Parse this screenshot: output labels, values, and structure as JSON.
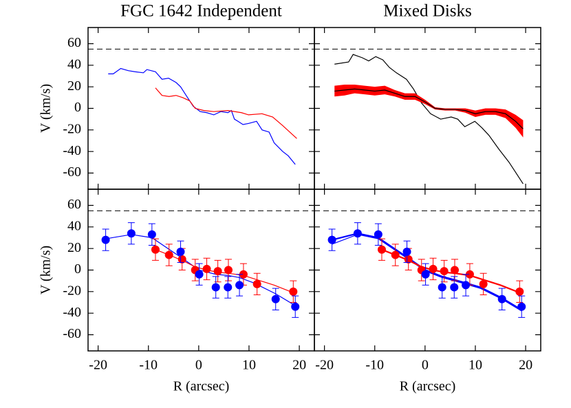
{
  "chart_data": [
    {
      "type": "line",
      "title": "FGC 1642 Independent",
      "ylabel": "V (km/s)",
      "xlim": [
        -22,
        23
      ],
      "ylim": [
        -75,
        75
      ],
      "xticks": [
        -20,
        -10,
        0,
        10,
        20
      ],
      "yticks": [
        -60,
        -40,
        -20,
        0,
        20,
        40,
        60
      ],
      "y_tick_labels": true,
      "x_tick_labels": false,
      "reference_line": 55,
      "series": [
        {
          "style": "line",
          "color": "#0000ff",
          "width": 1.2,
          "x": [
            -18,
            -17,
            -15.5,
            -14,
            -12.7,
            -11,
            -10.3,
            -8.6,
            -7.3,
            -6,
            -4.5,
            -3.6,
            -2.5,
            -1.1,
            0.3,
            1.6,
            3,
            4.4,
            5.8,
            6.5,
            7.1,
            7.8,
            8.8,
            9.9,
            11.5,
            12.6,
            14,
            15,
            16.7,
            17.8,
            19.2
          ],
          "values": [
            32,
            32,
            37,
            35,
            34,
            33,
            36,
            34,
            27,
            28,
            24,
            20,
            12,
            2,
            -3,
            -4,
            -6,
            -3,
            -4,
            -2,
            -10,
            -12,
            -15,
            -14,
            -12,
            -20,
            -22,
            -32,
            -40,
            -44,
            -52
          ]
        },
        {
          "style": "line",
          "color": "#ff0000",
          "width": 1.2,
          "x": [
            -8.6,
            -7.3,
            -5.9,
            -4.5,
            -3.2,
            -1.8,
            -0.7,
            1,
            3,
            5.8,
            8.5,
            9.9,
            12.6,
            14.7,
            16.7,
            18.1,
            19.5
          ],
          "values": [
            19,
            12,
            11,
            12,
            10,
            7,
            0,
            -2,
            -3,
            -2,
            -4,
            -6,
            -5,
            -8,
            -16,
            -22,
            -28
          ]
        }
      ]
    },
    {
      "type": "line",
      "title": "Mixed Disks",
      "xlim": [
        -22,
        23
      ],
      "ylim": [
        -75,
        75
      ],
      "xticks": [
        -20,
        -10,
        0,
        10,
        20
      ],
      "yticks": [
        -60,
        -40,
        -20,
        0,
        20,
        40,
        60
      ],
      "y_tick_labels": false,
      "x_tick_labels": false,
      "reference_line": 55,
      "series": [
        {
          "style": "line",
          "color": "#000000",
          "width": 1.2,
          "x": [
            -18,
            -15.2,
            -14.3,
            -12.5,
            -11.2,
            -9.8,
            -8.4,
            -7.1,
            -5.7,
            -3.7,
            -2.3,
            -0.7,
            1.1,
            3.1,
            5.2,
            6.5,
            7.9,
            9.9,
            11.3,
            12.7,
            14.7,
            16.7,
            19.5
          ],
          "values": [
            41,
            43,
            50,
            47,
            44,
            48,
            45,
            38,
            33,
            27,
            18,
            5,
            -5,
            -10,
            -8,
            -10,
            -17,
            -12,
            -18,
            -25,
            -38,
            -50,
            -70
          ]
        },
        {
          "style": "band",
          "color": "#ff0000",
          "line_color": "#000000",
          "width": 1.2,
          "x": [
            -18,
            -16,
            -14,
            -12,
            -10,
            -8,
            -6,
            -4,
            -2,
            0,
            2,
            4,
            6,
            8,
            10,
            12,
            14,
            16,
            18,
            19.5
          ],
          "values": [
            16,
            17,
            18,
            17,
            16,
            17,
            14,
            11,
            11,
            6,
            0,
            -1,
            -1,
            -2,
            -5,
            -3,
            -3,
            -5,
            -12,
            -19
          ],
          "errors": [
            5,
            5,
            4,
            4,
            4,
            4,
            3,
            3,
            3,
            2,
            1,
            1,
            1,
            2,
            3,
            3,
            3,
            4,
            6,
            8
          ]
        }
      ]
    },
    {
      "type": "line",
      "ylabel": "V (km/s)",
      "xlabel": "R (arcsec)",
      "xlim": [
        -22,
        23
      ],
      "ylim": [
        -75,
        75
      ],
      "xticks": [
        -20,
        -10,
        0,
        10,
        20
      ],
      "yticks": [
        -60,
        -40,
        -20,
        0,
        20,
        40,
        60
      ],
      "y_tick_labels": true,
      "x_tick_labels": true,
      "reference_line": 55,
      "series": [
        {
          "style": "line",
          "color": "#0000ff",
          "width": 1.2,
          "x": [
            -18.5,
            -13.4,
            -9.3,
            -3.6,
            0.1,
            3.4,
            5.8,
            8.1,
            11,
            15.3,
            19.2
          ],
          "values": [
            29,
            33,
            30,
            12,
            0,
            -4,
            -5,
            -7,
            -12,
            -22,
            -33
          ]
        },
        {
          "style": "line",
          "color": "#ff0000",
          "width": 1.2,
          "x": [
            -8.6,
            -5.9,
            -3.3,
            -0.7,
            1.6,
            3.8,
            5.9,
            8.9,
            11.6,
            15,
            18.8
          ],
          "values": [
            19,
            14,
            9,
            3,
            0,
            -2,
            -3,
            -5,
            -9,
            -14,
            -21
          ]
        },
        {
          "style": "points",
          "color": "#ff0000",
          "x": [
            -8.6,
            -5.9,
            -3.3,
            -0.7,
            1.6,
            3.8,
            5.9,
            8.9,
            11.6,
            18.8
          ],
          "values": [
            19,
            14,
            10,
            0,
            1,
            -1,
            0,
            -4,
            -13,
            -20
          ],
          "errors": [
            10,
            10,
            10,
            10,
            10,
            10,
            10,
            10,
            10,
            10
          ]
        },
        {
          "style": "points",
          "color": "#0000ff",
          "x": [
            -18.5,
            -13.4,
            -9.3,
            -3.6,
            0.1,
            3.4,
            5.8,
            8.1,
            15.3,
            19.2
          ],
          "values": [
            28,
            34,
            33,
            17,
            -4,
            -16,
            -16,
            -14,
            -27,
            -34
          ],
          "errors": [
            10,
            10,
            10,
            10,
            10,
            10,
            10,
            10,
            10,
            10
          ]
        }
      ]
    },
    {
      "type": "line",
      "xlabel": "R (arcsec)",
      "xlim": [
        -22,
        23
      ],
      "ylim": [
        -75,
        75
      ],
      "xticks": [
        -20,
        -10,
        0,
        10,
        20
      ],
      "yticks": [
        -60,
        -40,
        -20,
        0,
        20,
        40,
        60
      ],
      "y_tick_labels": false,
      "x_tick_labels": true,
      "reference_line": 55,
      "series": [
        {
          "style": "line",
          "color": "#0000ff",
          "width": 2.2,
          "x": [
            -18.5,
            -13.4,
            -9.3,
            -3.6,
            0.1,
            3.4,
            5.8,
            8.1,
            11,
            15.3,
            19.2
          ],
          "values": [
            28,
            34,
            30,
            12,
            0,
            -6,
            -9,
            -12,
            -16,
            -26,
            -37
          ]
        },
        {
          "style": "line",
          "color": "#0000ff",
          "width": 1.2,
          "x": [
            -18.5,
            -13.4,
            -9.3,
            -3.6,
            0.1,
            3.4,
            5.8,
            8.1,
            11,
            15.3,
            19.2
          ],
          "values": [
            24,
            33,
            29,
            11,
            -1,
            -7,
            -10,
            -13,
            -17,
            -27,
            -38
          ]
        },
        {
          "style": "line",
          "color": "#ff0000",
          "width": 2.2,
          "x": [
            -8.6,
            -5.9,
            -3.3,
            -0.7,
            1.6,
            3.8,
            5.9,
            8.9,
            11.6,
            15,
            18.8
          ],
          "values": [
            19,
            14,
            9,
            3,
            0,
            -2,
            -3,
            -5,
            -9,
            -14,
            -21
          ]
        },
        {
          "style": "points",
          "color": "#ff0000",
          "x": [
            -8.6,
            -5.9,
            -3.3,
            -0.7,
            1.6,
            3.8,
            5.9,
            8.9,
            11.6,
            18.8
          ],
          "values": [
            19,
            14,
            10,
            0,
            1,
            -1,
            0,
            -4,
            -13,
            -20
          ],
          "errors": [
            10,
            10,
            10,
            10,
            10,
            10,
            10,
            10,
            10,
            10
          ]
        },
        {
          "style": "points",
          "color": "#0000ff",
          "x": [
            -18.5,
            -13.4,
            -9.3,
            -3.6,
            0.1,
            3.4,
            5.8,
            8.1,
            15.3,
            19.2
          ],
          "values": [
            28,
            34,
            33,
            17,
            -4,
            -16,
            -16,
            -14,
            -27,
            -34
          ],
          "errors": [
            10,
            10,
            10,
            10,
            10,
            10,
            10,
            10,
            10,
            10
          ]
        }
      ]
    }
  ]
}
